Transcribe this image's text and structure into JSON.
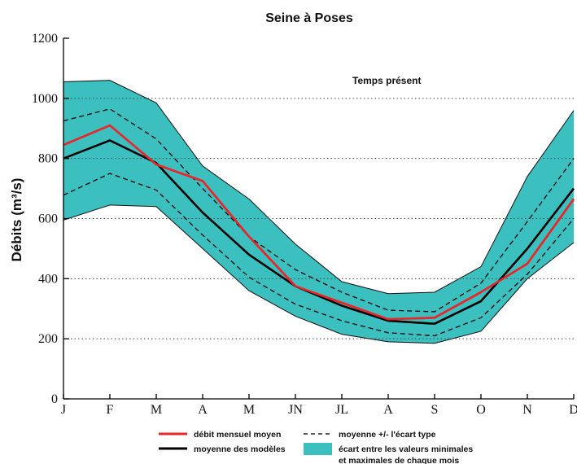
{
  "chart_data": {
    "type": "line",
    "title": "Seine à Poses",
    "ylabel": "Débits (m³/s)",
    "annotation": "Temps présent",
    "categories": [
      "J",
      "F",
      "M",
      "A",
      "M",
      "JN",
      "JL",
      "A",
      "S",
      "O",
      "N",
      "D"
    ],
    "ylim": [
      0,
      1200
    ],
    "yticks": [
      "0",
      "200",
      "400",
      "600",
      "800",
      "1000",
      "1200"
    ],
    "grid": "horizontal dotted",
    "band": {
      "name": "écart entre les valeurs minimales et maximales de chaque mois",
      "min": [
        595,
        645,
        640,
        500,
        360,
        275,
        215,
        190,
        185,
        225,
        400,
        520
      ],
      "max": [
        1055,
        1060,
        985,
        775,
        665,
        515,
        390,
        350,
        355,
        440,
        740,
        960
      ]
    },
    "series": [
      {
        "name": "débit mensuel moyen",
        "color": "#e8272b",
        "style": "solid",
        "values": [
          845,
          910,
          780,
          725,
          540,
          375,
          320,
          265,
          270,
          355,
          450,
          665
        ]
      },
      {
        "name": "moyenne des modèles",
        "color": "#000000",
        "style": "solid",
        "values": [
          800,
          860,
          785,
          620,
          480,
          375,
          310,
          260,
          250,
          325,
          500,
          700
        ]
      },
      {
        "name": "moyenne +/- l'écart type",
        "color": "#000000",
        "style": "dashed",
        "values": [
          925,
          965,
          865,
          700,
          540,
          430,
          355,
          295,
          290,
          385,
          590,
          800
        ]
      },
      {
        "name": "moyenne +/- l'écart type (bas)",
        "color": "#000000",
        "style": "dashed",
        "values": [
          678,
          750,
          695,
          545,
          405,
          315,
          260,
          220,
          210,
          270,
          415,
          600
        ]
      }
    ],
    "legend": {
      "placement": "bottom",
      "red_label": "débit mensuel moyen",
      "black_label": "moyenne des modèles",
      "dashed_label": "moyenne +/- l'écart type",
      "band_label_1": "écart entre les valeurs minimales",
      "band_label_2": "et maximales de chaque mois"
    },
    "colors": {
      "band": "#3cbfbf",
      "mean_flow": "#e8272b",
      "model_mean": "#000000"
    }
  }
}
